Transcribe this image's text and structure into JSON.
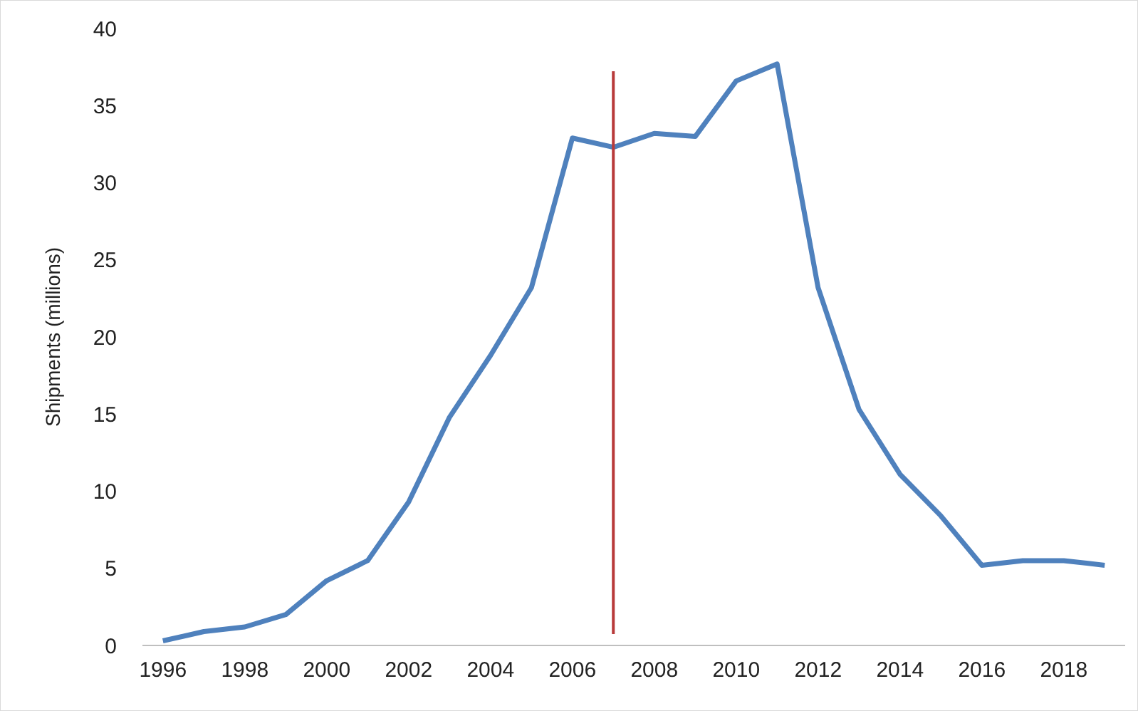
{
  "chart_data": {
    "type": "line",
    "ylabel": "Shipments (millions)",
    "x": [
      1996,
      1997,
      1998,
      1999,
      2000,
      2001,
      2002,
      2003,
      2004,
      2005,
      2006,
      2007,
      2008,
      2009,
      2010,
      2011,
      2012,
      2013,
      2014,
      2015,
      2016,
      2017,
      2018,
      2019
    ],
    "series": [
      {
        "color": "#4f81bd",
        "values": [
          0.3,
          0.9,
          1.2,
          2.0,
          4.2,
          5.5,
          9.3,
          14.8,
          18.8,
          23.2,
          32.9,
          32.3,
          33.2,
          33.0,
          36.6,
          37.7,
          23.2,
          15.3,
          11.1,
          8.4,
          5.2,
          5.5,
          5.5,
          5.2
        ]
      }
    ],
    "xlim": [
      1995.5,
      2019.5
    ],
    "xticks": [
      1996,
      1998,
      2000,
      2002,
      2004,
      2006,
      2008,
      2010,
      2012,
      2014,
      2016,
      2018
    ],
    "ylim": [
      0,
      40
    ],
    "yticks": [
      0,
      5,
      10,
      15,
      20,
      25,
      30,
      35,
      40
    ],
    "ref_lines": [
      {
        "axis": "x",
        "value": 2007,
        "color": "#b83a3a"
      }
    ],
    "grid": false,
    "marker": "none",
    "line_style": "solid"
  }
}
